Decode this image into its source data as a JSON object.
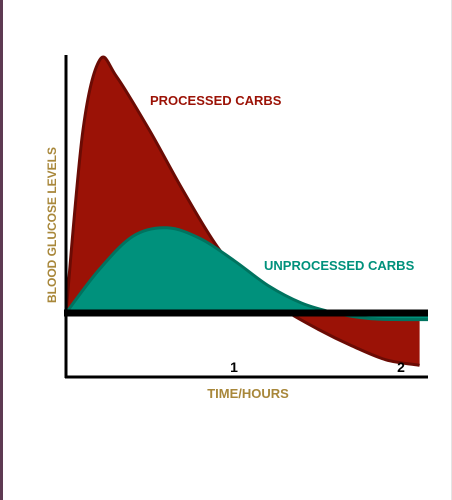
{
  "chart_data": {
    "type": "area",
    "title": "",
    "xlabel": "TIME/HOURS",
    "ylabel": "BLOOD GLUCOSE LEVELS",
    "x_ticks": [
      "1",
      "2"
    ],
    "xlim": [
      0,
      2.15
    ],
    "baseline": 0,
    "series": [
      {
        "name": "PROCESSED CARBS",
        "color": "#9b1206",
        "x": [
          0,
          0.1,
          0.2,
          0.3,
          0.5,
          0.7,
          0.9,
          1.1,
          1.3,
          1.5,
          1.7,
          1.9,
          2.1
        ],
        "y": [
          0,
          3.3,
          4.6,
          4.3,
          3.3,
          2.2,
          1.2,
          0.5,
          0.05,
          -0.3,
          -0.6,
          -0.85,
          -0.95
        ]
      },
      {
        "name": "UNPROCESSED CARBS",
        "color": "#00917c",
        "x": [
          0,
          0.2,
          0.4,
          0.6,
          0.8,
          1.0,
          1.2,
          1.4,
          1.6,
          1.8,
          2.0,
          2.15
        ],
        "y": [
          0,
          0.8,
          1.4,
          1.55,
          1.35,
          0.95,
          0.5,
          0.18,
          0.0,
          -0.1,
          -0.12,
          -0.12
        ]
      }
    ],
    "colors": {
      "axis": "#000000",
      "label_gold": "#a8873a"
    }
  }
}
